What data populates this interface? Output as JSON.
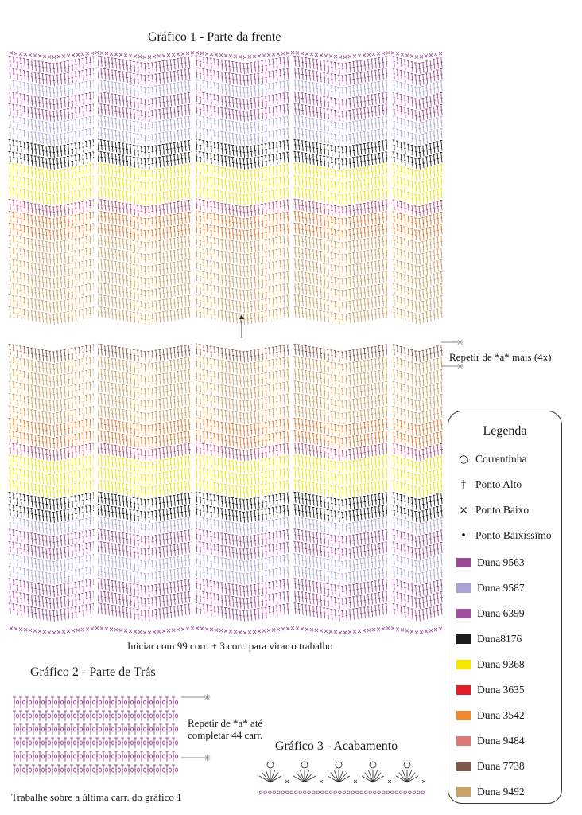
{
  "chart1": {
    "title": "Gráfico 1 - Parte da frente",
    "start_note": "Iniciar com 99 corr. + 3 corr. para virar o trabalho",
    "repeat_note": "Repetir de *a* mais (4x)",
    "upper_rows": [
      "#9b4a95",
      "#9b4a95",
      "#b0a9d6",
      "#9b4a95",
      "#9b4a95",
      "#b0a9d6",
      "#b0a9d6",
      "#1c1c1c",
      "#1c1c1c",
      "#f5e600",
      "#f5e600",
      "#f5e600",
      "#b5507a",
      "#e07b2d",
      "#e07b2d",
      "#cfa262",
      "#cfa262",
      "#cfa262",
      "#cfa262",
      "#cfa262",
      "#cfa262",
      "#cfa262"
    ],
    "lower_rows": [
      "#8b5a4a",
      "#cfa262",
      "#cfa262",
      "#cfa262",
      "#cfa262",
      "#cfa262",
      "#e07b2d",
      "#e07b2d",
      "#b5507a",
      "#f5e600",
      "#f5e600",
      "#f5e600",
      "#1c1c1c",
      "#1c1c1c",
      "#b0a9d6",
      "#9b4a95",
      "#9b4a95",
      "#b0a9d6",
      "#b0a9d6",
      "#9b4a95",
      "#9b4a95",
      "#9b4a95"
    ]
  },
  "chart2": {
    "title": "Gráfico 2 - Parte de Trás",
    "repeat_note_1": "Repetir de *a* até",
    "repeat_note_2": "completar 44 carr.",
    "bottom_note": "Trabalhe sobre a última carr. do gráfico 1",
    "row_color": "#9b4a95"
  },
  "chart3": {
    "title": "Gráfico 3 - Acabamento",
    "color": "#9b4a95"
  },
  "legend": {
    "title": "Legenda",
    "symbols": [
      {
        "icon": "chain-stitch-icon",
        "glyph": "○",
        "label": "Correntinha"
      },
      {
        "icon": "double-crochet-icon",
        "glyph": "†",
        "label": "Ponto Alto"
      },
      {
        "icon": "single-crochet-icon",
        "glyph": "×",
        "label": "Ponto Baixo"
      },
      {
        "icon": "slip-stitch-icon",
        "glyph": "•",
        "label": "Ponto Baixíssimo"
      }
    ],
    "colors": [
      {
        "label": "Duna 9563",
        "color": "#9b4a95"
      },
      {
        "label": "Duna 9587",
        "color": "#a8a3d2"
      },
      {
        "label": "Duna 6399",
        "color": "#a04fa0"
      },
      {
        "label": "Duna8176",
        "color": "#1c1c1c"
      },
      {
        "label": "Duna 9368",
        "color": "#f7e600"
      },
      {
        "label": "Duna 3635",
        "color": "#e02028"
      },
      {
        "label": "Duna 3542",
        "color": "#ef8a2e"
      },
      {
        "label": "Duna 9484",
        "color": "#dc7876"
      },
      {
        "label": "Duna 7738",
        "color": "#7d5a4a"
      },
      {
        "label": "Duna 9492",
        "color": "#c9a267"
      }
    ]
  }
}
